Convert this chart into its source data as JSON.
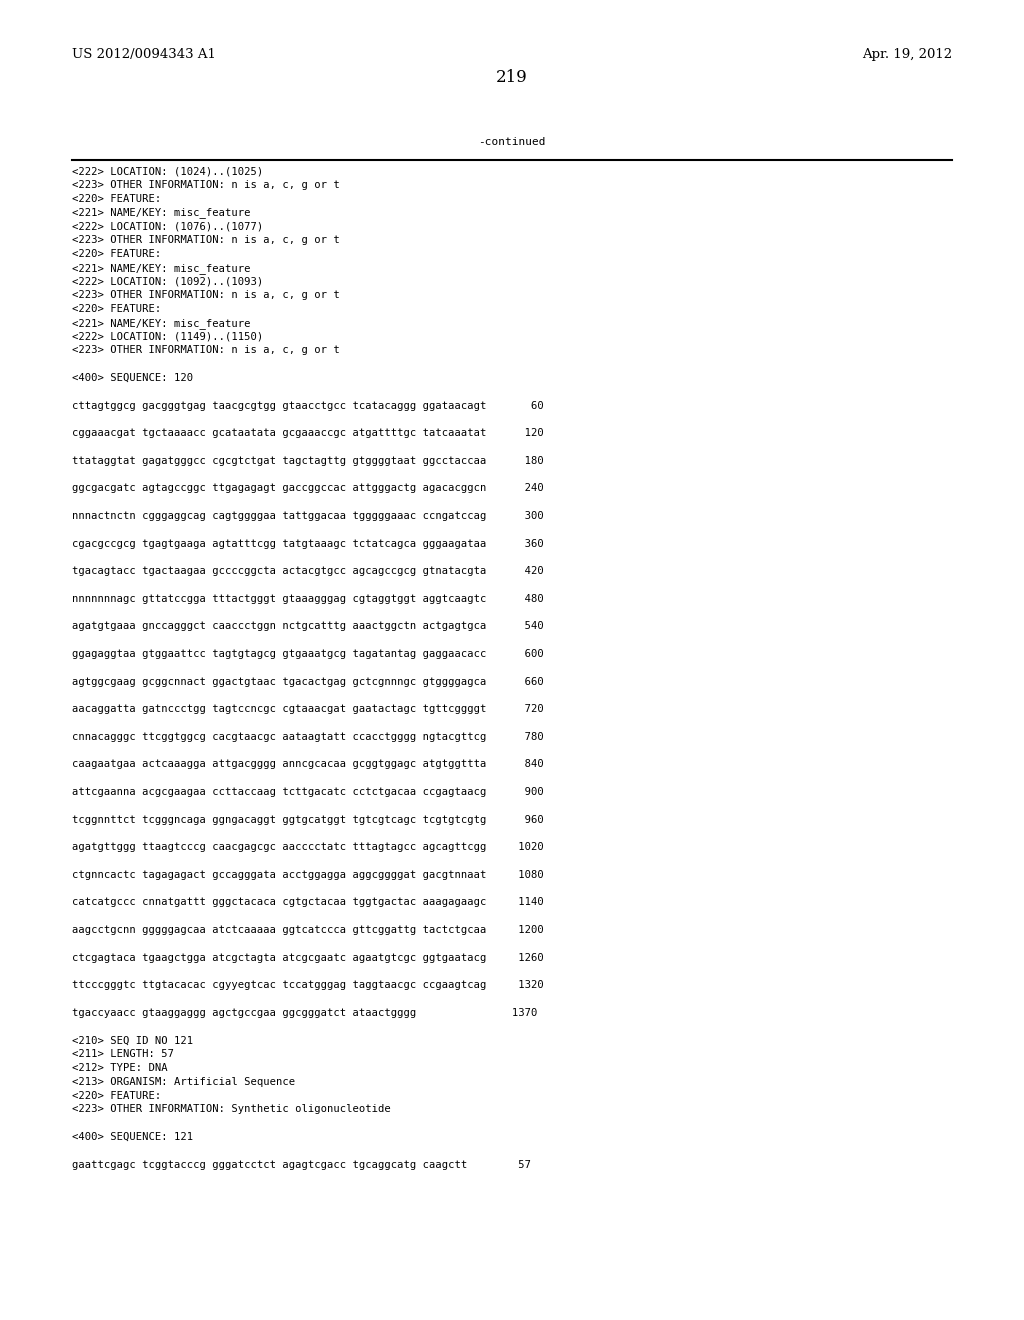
{
  "header_left": "US 2012/0094343 A1",
  "header_right": "Apr. 19, 2012",
  "page_number": "219",
  "continued_label": "-continued",
  "background_color": "#ffffff",
  "text_color": "#000000",
  "font_size_header": 9.5,
  "font_size_page": 12,
  "font_size_continued": 8.0,
  "mono_font_size": 7.6,
  "content_lines": [
    "<222> LOCATION: (1024)..(1025)",
    "<223> OTHER INFORMATION: n is a, c, g or t",
    "<220> FEATURE:",
    "<221> NAME/KEY: misc_feature",
    "<222> LOCATION: (1076)..(1077)",
    "<223> OTHER INFORMATION: n is a, c, g or t",
    "<220> FEATURE:",
    "<221> NAME/KEY: misc_feature",
    "<222> LOCATION: (1092)..(1093)",
    "<223> OTHER INFORMATION: n is a, c, g or t",
    "<220> FEATURE:",
    "<221> NAME/KEY: misc_feature",
    "<222> LOCATION: (1149)..(1150)",
    "<223> OTHER INFORMATION: n is a, c, g or t",
    "",
    "<400> SEQUENCE: 120",
    "",
    "cttagtggcg gacgggtgag taacgcgtgg gtaacctgcc tcatacaggg ggataacagt       60",
    "",
    "cggaaacgat tgctaaaacc gcataatata gcgaaaccgc atgattttgc tatcaaatat      120",
    "",
    "ttataggtat gagatgggcc cgcgtctgat tagctagttg gtggggtaat ggcctaccaa      180",
    "",
    "ggcgacgatc agtagccggc ttgagagagt gaccggccac attgggactg agacacggcn      240",
    "",
    "nnnactnctn cgggaggcag cagtggggaa tattggacaa tgggggaaac ccngatccag      300",
    "",
    "cgacgccgcg tgagtgaaga agtatttcgg tatgtaaagc tctatcagca gggaagataa      360",
    "",
    "tgacagtacc tgactaagaa gccccggcta actacgtgcc agcagccgcg gtnatacgta      420",
    "",
    "nnnnnnnagc gttatccgga tttactgggt gtaaagggag cgtaggtggt aggtcaagtc      480",
    "",
    "agatgtgaaa gnccagggct caaccctggn nctgcatttg aaactggctn actgagtgca      540",
    "",
    "ggagaggtaa gtggaattcc tagtgtagcg gtgaaatgcg tagatantag gaggaacacc      600",
    "",
    "agtggcgaag gcggcnnact ggactgtaac tgacactgag gctcgnnngc gtggggagca      660",
    "",
    "aacaggatta gatnccctgg tagtccncgc cgtaaacgat gaatactagc tgttcggggt      720",
    "",
    "cnnacagggc ttcggtggcg cacgtaacgc aataagtatt ccacctgggg ngtacgttcg      780",
    "",
    "caagaatgaa actcaaagga attgacgggg anncgcacaa gcggtggagc atgtggttta      840",
    "",
    "attcgaanna acgcgaagaa ccttaccaag tcttgacatc cctctgacaa ccgagtaacg      900",
    "",
    "tcggnnttct tcgggncaga ggngacaggt ggtgcatggt tgtcgtcagc tcgtgtcgtg      960",
    "",
    "agatgttggg ttaagtcccg caacgagcgc aacccctatc tttagtagcc agcagttcgg     1020",
    "",
    "ctgnncactc tagagagact gccagggata acctggagga aggcggggat gacgtnnaat     1080",
    "",
    "catcatgccc cnnatgattt gggctacaca cgtgctacaa tggtgactac aaagagaagc     1140",
    "",
    "aagcctgcnn gggggagcaa atctcaaaaa ggtcatccca gttcggattg tactctgcaa     1200",
    "",
    "ctcgagtaca tgaagctgga atcgctagta atcgcgaatc agaatgtcgc ggtgaatacg     1260",
    "",
    "ttcccgggtc ttgtacacac cgyyegtcac tccatgggag taggtaacgc ccgaagtcag     1320",
    "",
    "tgaccyaacc gtaaggaggg agctgccgaa ggcgggatct ataactgggg               1370",
    "",
    "<210> SEQ ID NO 121",
    "<211> LENGTH: 57",
    "<212> TYPE: DNA",
    "<213> ORGANISM: Artificial Sequence",
    "<220> FEATURE:",
    "<223> OTHER INFORMATION: Synthetic oligonucleotide",
    "",
    "<400> SEQUENCE: 121",
    "",
    "gaattcgagc tcggtacccg gggatcctct agagtcgacc tgcaggcatg caagctt        57"
  ]
}
